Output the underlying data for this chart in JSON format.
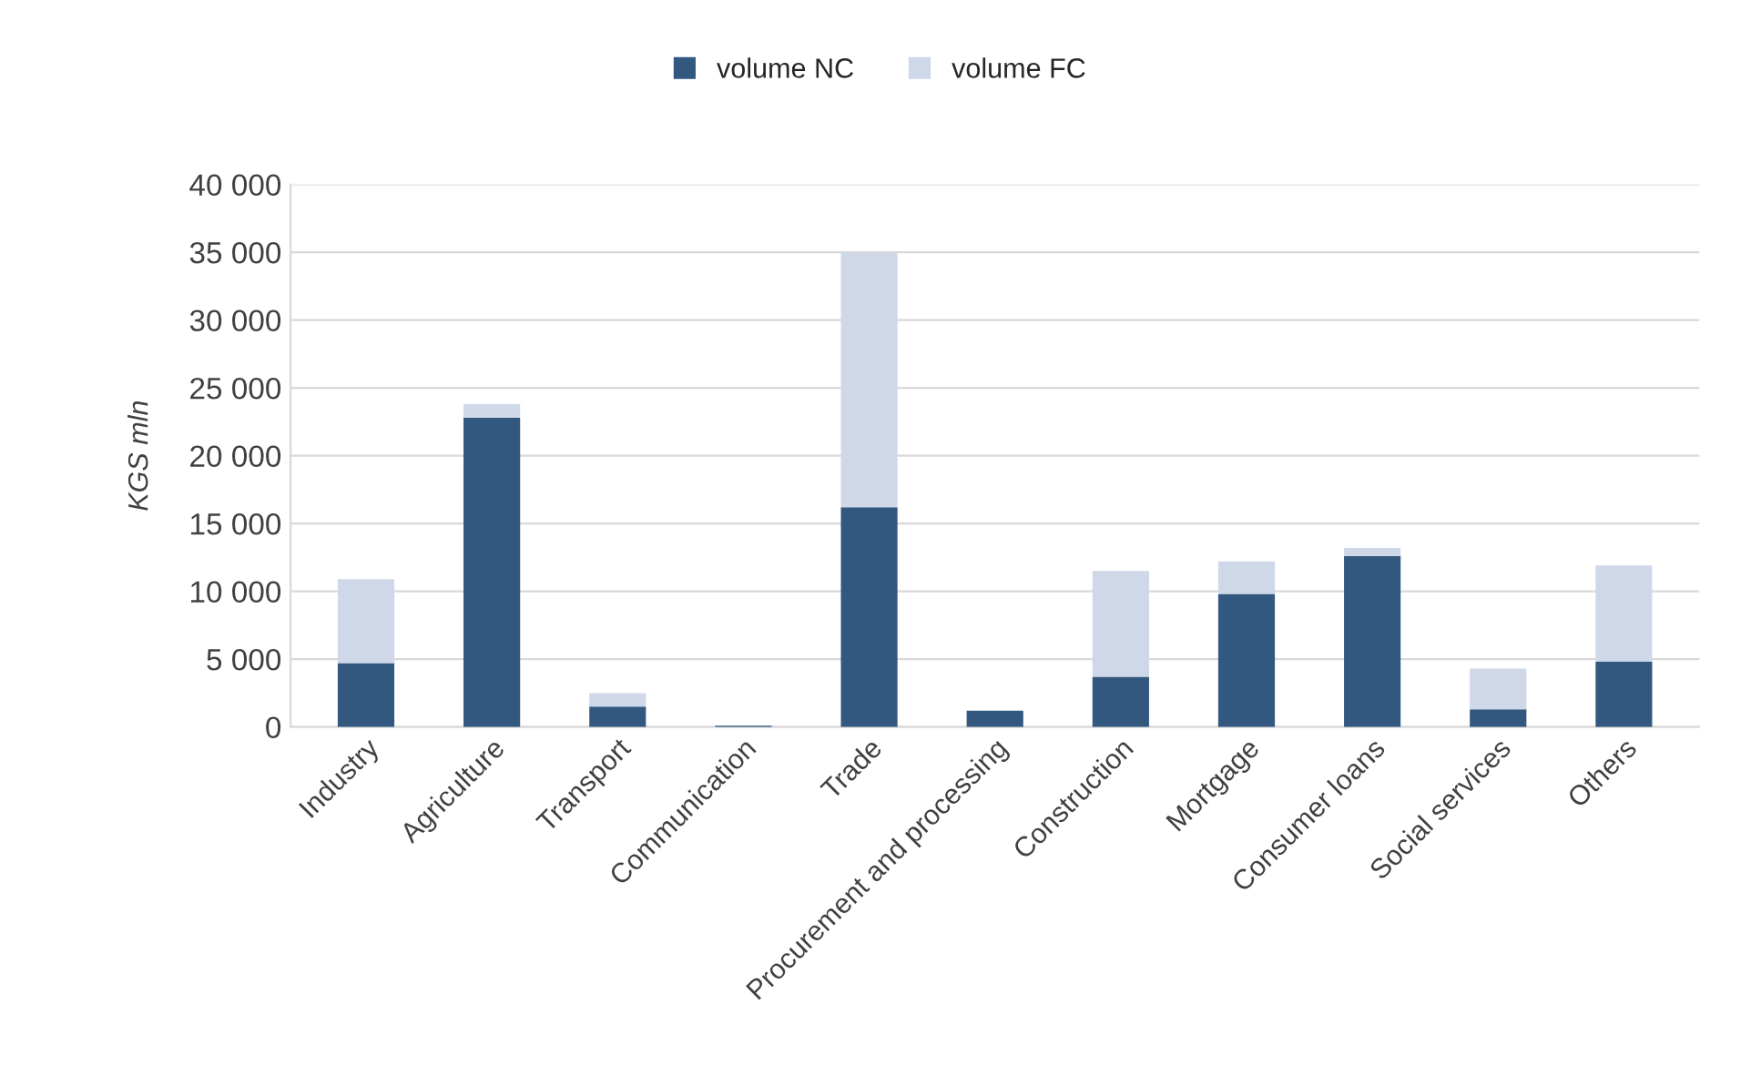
{
  "chart_data": {
    "type": "bar",
    "stacked": true,
    "ylabel": "KGS mln",
    "categories": [
      "Industry",
      "Agriculture",
      "Transport",
      "Communication",
      "Trade",
      "Procurement and processing",
      "Construction",
      "Mortgage",
      "Consumer loans",
      "Social services",
      "Others"
    ],
    "series": [
      {
        "name": "volume NC",
        "color": "#325880",
        "values": [
          4700,
          22800,
          1500,
          100,
          16200,
          1200,
          3700,
          9800,
          12600,
          1300,
          4800
        ]
      },
      {
        "name": "volume FC",
        "color": "#cfd8e8",
        "values": [
          6200,
          1000,
          1000,
          null,
          18800,
          null,
          7800,
          2400,
          600,
          3000,
          7100
        ]
      }
    ],
    "ylim": [
      0,
      40000
    ],
    "yticks": [
      {
        "value": 0,
        "label": "0"
      },
      {
        "value": 5000,
        "label": "5 000"
      },
      {
        "value": 10000,
        "label": "10 000"
      },
      {
        "value": 15000,
        "label": "15 000"
      },
      {
        "value": 20000,
        "label": "20 000"
      },
      {
        "value": 25000,
        "label": "25 000"
      },
      {
        "value": 30000,
        "label": "30 000"
      },
      {
        "value": 35000,
        "label": "35 000"
      },
      {
        "value": 40000,
        "label": "40 000"
      }
    ],
    "grid": "y",
    "legend": "top"
  }
}
